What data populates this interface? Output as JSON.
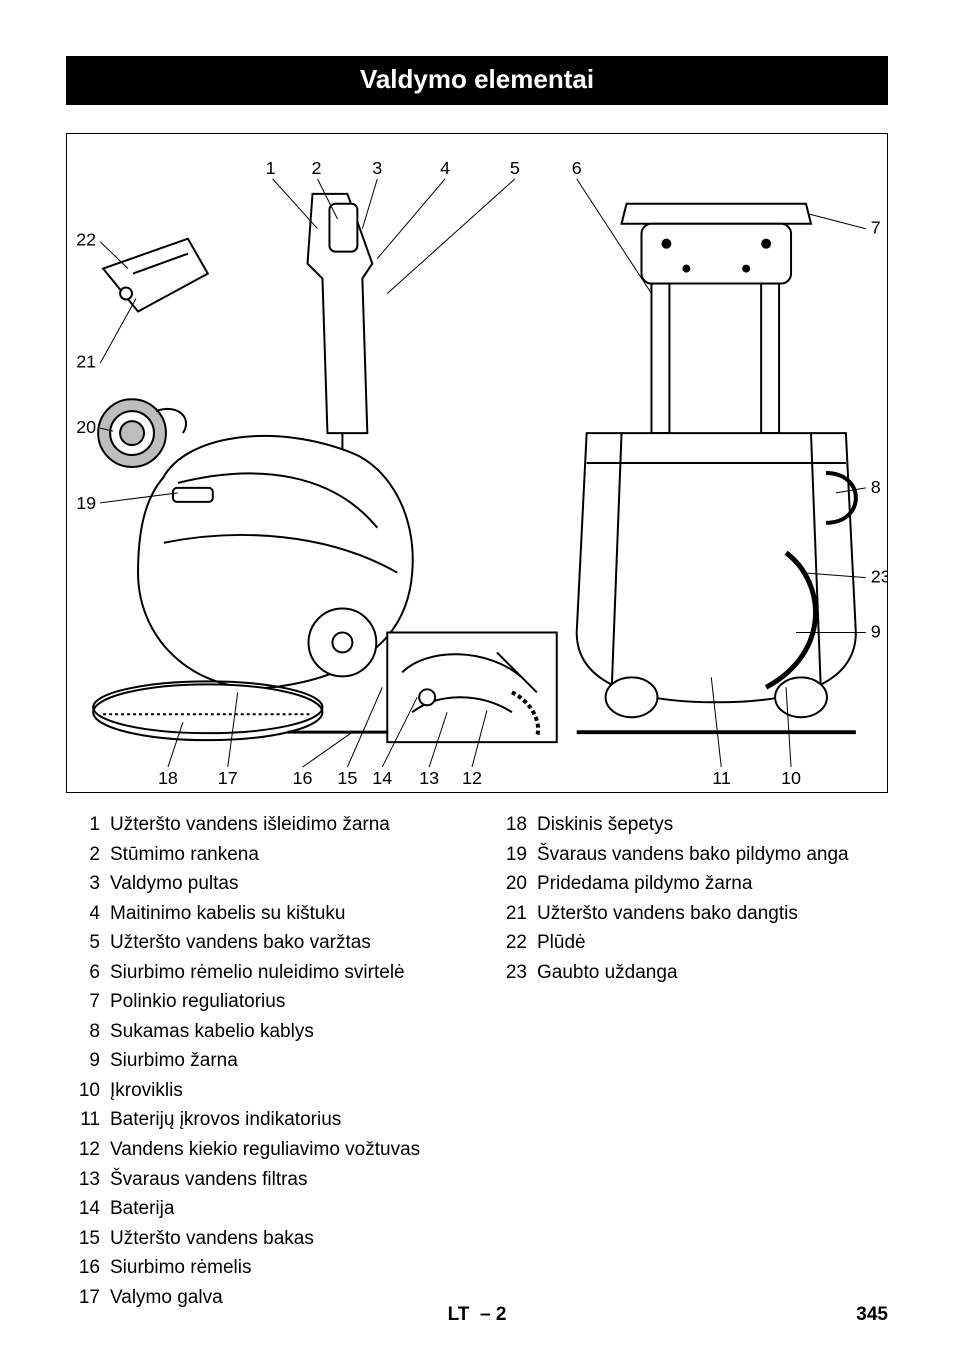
{
  "header": {
    "title": "Valdymo elementai"
  },
  "diagram": {
    "top_numbers": [
      1,
      2,
      3,
      4,
      5,
      6
    ],
    "right_numbers": [
      7,
      8,
      23,
      9
    ],
    "left_numbers": [
      22,
      21,
      20,
      19
    ],
    "bottom_numbers": [
      18,
      17,
      16,
      15,
      14,
      13,
      12,
      11,
      10
    ],
    "stroke_color": "#000000",
    "fill_color": "#ffffff",
    "accent_gray": "#bdbdbd"
  },
  "items_left": [
    {
      "n": 1,
      "label": "Užteršto vandens išleidimo žarna"
    },
    {
      "n": 2,
      "label": "Stūmimo rankena"
    },
    {
      "n": 3,
      "label": "Valdymo pultas"
    },
    {
      "n": 4,
      "label": "Maitinimo kabelis su kištuku"
    },
    {
      "n": 5,
      "label": "Užteršto vandens bako varžtas"
    },
    {
      "n": 6,
      "label": "Siurbimo rėmelio nuleidimo svirtelė"
    },
    {
      "n": 7,
      "label": "Polinkio reguliatorius"
    },
    {
      "n": 8,
      "label": "Sukamas kabelio kablys"
    },
    {
      "n": 9,
      "label": "Siurbimo žarna"
    },
    {
      "n": 10,
      "label": "Įkroviklis"
    },
    {
      "n": 11,
      "label": "Baterijų įkrovos indikatorius"
    },
    {
      "n": 12,
      "label": "Vandens kiekio reguliavimo vožtuvas"
    },
    {
      "n": 13,
      "label": "Švaraus vandens filtras"
    },
    {
      "n": 14,
      "label": "Baterija"
    },
    {
      "n": 15,
      "label": "Užteršto vandens bakas"
    },
    {
      "n": 16,
      "label": "Siurbimo rėmelis"
    },
    {
      "n": 17,
      "label": "Valymo galva"
    }
  ],
  "items_right": [
    {
      "n": 18,
      "label": "Diskinis šepetys"
    },
    {
      "n": 19,
      "label": "Švaraus vandens bako pildymo anga"
    },
    {
      "n": 20,
      "label": "Pridedama pildymo žarna"
    },
    {
      "n": 21,
      "label": "Užteršto vandens bako dangtis"
    },
    {
      "n": 22,
      "label": "Plūdė"
    },
    {
      "n": 23,
      "label": "Gaubto uždanga"
    }
  ],
  "footer": {
    "lang": "LT",
    "sep": "–",
    "sub": "2",
    "page": "345"
  }
}
